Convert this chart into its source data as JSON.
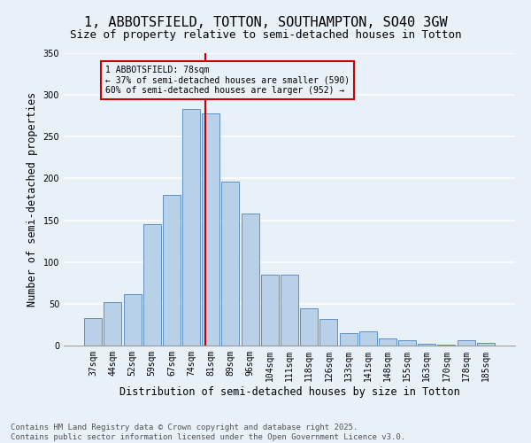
{
  "title": "1, ABBOTSFIELD, TOTTON, SOUTHAMPTON, SO40 3GW",
  "subtitle": "Size of property relative to semi-detached houses in Totton",
  "xlabel": "Distribution of semi-detached houses by size in Totton",
  "ylabel": "Number of semi-detached properties",
  "categories": [
    "37sqm",
    "44sqm",
    "52sqm",
    "59sqm",
    "67sqm",
    "74sqm",
    "81sqm",
    "89sqm",
    "96sqm",
    "104sqm",
    "111sqm",
    "118sqm",
    "126sqm",
    "133sqm",
    "141sqm",
    "148sqm",
    "155sqm",
    "163sqm",
    "170sqm",
    "178sqm",
    "185sqm"
  ],
  "values": [
    33,
    52,
    62,
    145,
    180,
    283,
    278,
    196,
    158,
    85,
    85,
    45,
    32,
    15,
    17,
    8,
    6,
    2,
    1,
    6,
    3
  ],
  "bar_color": "#b8d0e8",
  "bar_edge_color": "#6090c0",
  "background_color": "#e8f0f8",
  "grid_color": "#ffffff",
  "vline_x": 5.72,
  "vline_color": "#cc0000",
  "annotation_title": "1 ABBOTSFIELD: 78sqm",
  "annotation_line1": "← 37% of semi-detached houses are smaller (590)",
  "annotation_line2": "60% of semi-detached houses are larger (952) →",
  "annotation_box_color": "#cc0000",
  "footer_line1": "Contains HM Land Registry data © Crown copyright and database right 2025.",
  "footer_line2": "Contains public sector information licensed under the Open Government Licence v3.0.",
  "ylim": [
    0,
    350
  ],
  "yticks": [
    0,
    50,
    100,
    150,
    200,
    250,
    300,
    350
  ],
  "title_fontsize": 11,
  "subtitle_fontsize": 9,
  "axis_label_fontsize": 8.5,
  "tick_fontsize": 7,
  "footer_fontsize": 6.5
}
